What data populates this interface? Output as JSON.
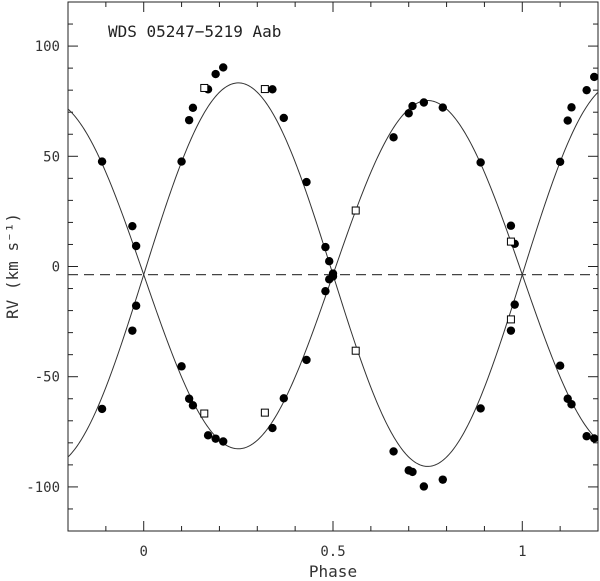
{
  "chart_data": {
    "type": "scatter",
    "title": "WDS 05247−5219 Aab",
    "xlabel": "Phase",
    "ylabel": "RV (km s⁻¹)",
    "xlim": [
      -0.2,
      1.2
    ],
    "ylim": [
      -120,
      120
    ],
    "x_ticks": [
      0,
      0.5,
      1
    ],
    "x_tick_labels": [
      "0",
      "0.5",
      "1"
    ],
    "y_ticks": [
      -100,
      -50,
      0,
      50,
      100
    ],
    "y_tick_labels": [
      "-100",
      "-50",
      "0",
      "50",
      "100"
    ],
    "systemic_velocity": -3.7,
    "grid": false,
    "legend": "none",
    "orbit": {
      "primary": {
        "amplitude": 87,
        "phase_of_max": 0.25
      },
      "secondary": {
        "amplitude": 79,
        "phase_of_max": 0.75
      }
    },
    "series": [
      {
        "marker": "filled-circle",
        "x": [
          0.1,
          0.12,
          0.13,
          0.17,
          0.19,
          0.21,
          0.34,
          0.37,
          0.43,
          0.48,
          0.49,
          0.5,
          0.66,
          0.7,
          0.71,
          0.74,
          0.79,
          0.89,
          0.97,
          0.98,
          1.1,
          1.12,
          1.13,
          1.17,
          1.19,
          -0.11,
          -0.03,
          -0.02,
          0.1,
          0.12,
          0.13,
          0.17,
          0.19,
          0.21,
          0.34,
          0.37,
          0.43,
          0.48,
          0.49,
          0.5,
          0.66,
          0.7,
          0.71,
          0.74,
          0.79,
          0.89,
          0.97,
          0.98,
          1.1,
          1.12,
          1.13,
          1.17,
          1.19,
          -0.11,
          -0.03,
          -0.02
        ],
        "y": [
          47.6,
          66.4,
          72.0,
          80.4,
          87.3,
          90.3,
          80.4,
          67.4,
          38.3,
          8.8,
          2.4,
          -4.5,
          58.6,
          69.5,
          72.8,
          74.4,
          72.1,
          47.2,
          18.5,
          10.3,
          -45.0,
          -60.0,
          -62.5,
          -77.0,
          -78.0,
          47.6,
          18.3,
          9.3,
          -45.3,
          -60.0,
          -63.0,
          -76.6,
          -78.1,
          -79.4,
          -73.3,
          -59.8,
          -42.4,
          -11.2,
          -5.8,
          -3.2,
          -83.9,
          -92.5,
          -93.2,
          -99.8,
          -96.7,
          -64.4,
          -29.1,
          -17.3,
          47.5,
          66.2,
          72.2,
          80.0,
          86.0,
          -64.6,
          -29.1,
          -17.8
        ]
      },
      {
        "marker": "open-square",
        "x": [
          0.16,
          0.32,
          0.56,
          0.97,
          0.16,
          0.32,
          0.56,
          0.97
        ],
        "y": [
          81.0,
          80.5,
          25.4,
          11.3,
          -66.7,
          -66.3,
          -38.2,
          -24.0
        ]
      }
    ]
  }
}
